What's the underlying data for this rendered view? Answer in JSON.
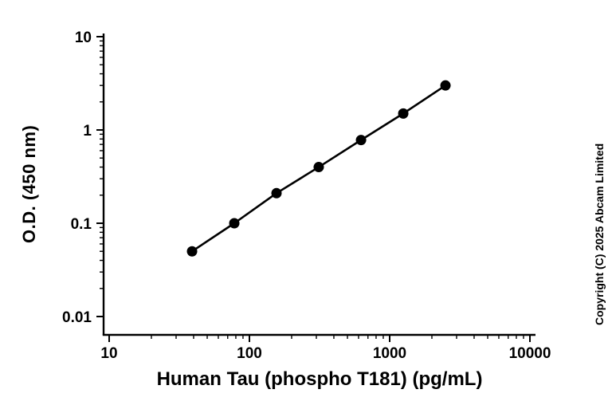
{
  "figure": {
    "background": "#ffffff",
    "axis_color": "#000000",
    "text_color": "#000000"
  },
  "annotations": {
    "copyright": "Copyright (C) 2025 Abcam Limited"
  },
  "chart_data": {
    "type": "scatter",
    "title": "",
    "xlabel": "Human Tau (phospho T181) (pg/mL)",
    "ylabel": "O.D. (450 nm)",
    "x_scale": "log",
    "y_scale": "log",
    "xlim": [
      10,
      10000
    ],
    "ylim": [
      0.01,
      10
    ],
    "x_ticks": [
      10,
      100,
      1000,
      10000
    ],
    "x_tick_labels": [
      "10",
      "100",
      "1000",
      "10000"
    ],
    "y_ticks": [
      0.01,
      0.1,
      1,
      10
    ],
    "y_tick_labels": [
      "0.01",
      "0.1",
      "1",
      "10"
    ],
    "grid": false,
    "legend": "none",
    "series": [
      {
        "name": "standard-curve",
        "marker": "filled-circle",
        "marker_color": "#000000",
        "line_color": "#000000",
        "points": [
          {
            "x": 39,
            "y": 0.05
          },
          {
            "x": 78,
            "y": 0.1
          },
          {
            "x": 156,
            "y": 0.21
          },
          {
            "x": 312,
            "y": 0.4
          },
          {
            "x": 625,
            "y": 0.78
          },
          {
            "x": 1250,
            "y": 1.5
          },
          {
            "x": 2500,
            "y": 3.0
          }
        ]
      }
    ]
  }
}
